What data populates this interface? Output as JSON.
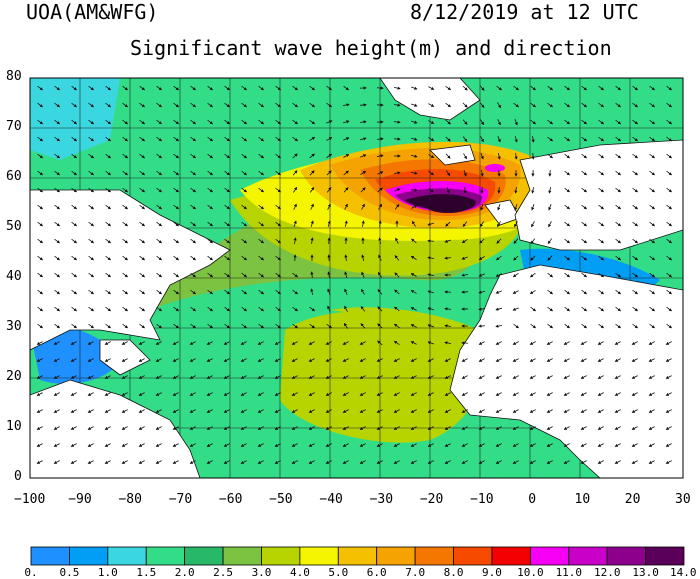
{
  "header": {
    "model_label": "UOA(AM&WFG)",
    "datetime": "8/12/2019 at 12 UTC",
    "title": "Significant wave height(m) and direction"
  },
  "map": {
    "lon_range": [
      -100,
      30
    ],
    "lat_range": [
      0,
      80
    ],
    "lon_ticks": [
      "−100",
      "−90",
      "−80",
      "−70",
      "−60",
      "−50",
      "−40",
      "−30",
      "−20",
      "−10",
      "0",
      "10",
      "20",
      "30"
    ],
    "lat_ticks": [
      "0",
      "10",
      "20",
      "30",
      "40",
      "50",
      "60",
      "70",
      "80"
    ],
    "storm_center": {
      "lon": -22,
      "lat": 53,
      "peak_wave_height_m": 14.0
    }
  },
  "colorbar": {
    "labels": [
      "0.",
      "0.5",
      "1.0",
      "1.5",
      "2.0",
      "2.5",
      "3.0",
      "4.0",
      "5.0",
      "6.0",
      "7.0",
      "8.0",
      "9.0",
      "10.0",
      "11.0",
      "12.0",
      "13.0",
      "14.0"
    ],
    "colors": [
      "#1e90ff",
      "#009ef5",
      "#3ad7e0",
      "#33dd88",
      "#28b86a",
      "#7cc341",
      "#b8d400",
      "#f5f500",
      "#f5c000",
      "#f5a300",
      "#f57700",
      "#f54a00",
      "#f50000",
      "#f500f5",
      "#c800c8",
      "#8c008c",
      "#5a005a",
      "#2d002d"
    ]
  }
}
